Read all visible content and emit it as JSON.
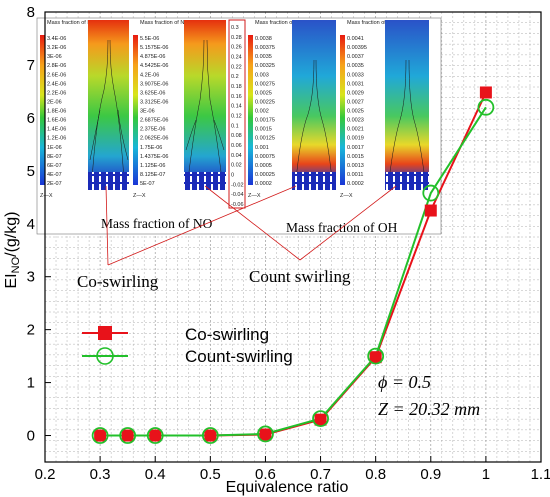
{
  "chart_data": {
    "type": "line",
    "title": "",
    "xlabel": "Equivalence ratio",
    "ylabel_main": "EI",
    "ylabel_sub": "NO",
    "ylabel_unit": "/(g/kg)",
    "xlim": [
      0.2,
      1.1
    ],
    "ylim": [
      -0.5,
      8
    ],
    "x_ticks": [
      "0.2",
      "0.3",
      "0.4",
      "0.5",
      "0.6",
      "0.7",
      "0.8",
      "0.9",
      "1",
      "1.1"
    ],
    "y_ticks": [
      "0",
      "1",
      "2",
      "3",
      "4",
      "5",
      "6",
      "7",
      "8"
    ],
    "grid": true,
    "legend_position": "bottom-left",
    "series": [
      {
        "name": "Co-swirling",
        "color": "#e8121a",
        "marker": "square",
        "x": [
          0.3,
          0.35,
          0.4,
          0.5,
          0.6,
          0.7,
          0.8,
          0.9,
          1.0
        ],
        "y": [
          0.0,
          0.0,
          0.0,
          0.0,
          0.02,
          0.3,
          1.48,
          4.25,
          6.48
        ]
      },
      {
        "name": "Count-swirling",
        "color": "#22c02a",
        "marker": "circle",
        "x": [
          0.3,
          0.35,
          0.4,
          0.5,
          0.6,
          0.7,
          0.8,
          0.9,
          1.0
        ],
        "y": [
          0.0,
          0.0,
          0.0,
          0.0,
          0.03,
          0.32,
          1.5,
          4.58,
          6.2
        ]
      }
    ],
    "annotations": {
      "phi_label": "ϕ = 0.5",
      "z_label": "Z = 20.32 mm",
      "co_swirling_label": "Co-swirling",
      "count_swirling_label": "Count swirling",
      "caption_no": "Mass fraction of NO",
      "caption_oh": "Mass fraction of OH"
    },
    "inset": {
      "no_legend_title": "Mass fraction of NO",
      "oh_legend_title": "Mass fraction of OH",
      "no_scale_1": [
        "3.4E-06",
        "3.2E-06",
        "3E-06",
        "2.8E-06",
        "2.6E-06",
        "2.4E-06",
        "2.2E-06",
        "2E-06",
        "1.8E-06",
        "1.6E-06",
        "1.4E-06",
        "1.2E-06",
        "1E-06",
        "8E-07",
        "6E-07",
        "4E-07",
        "2E-07"
      ],
      "no_scale_2": [
        "5.5E-06",
        "5.1575E-06",
        "4.875E-06",
        "4.5425E-06",
        "4.2E-06",
        "3.9075E-06",
        "3.625E-06",
        "3.3125E-06",
        "3E-06",
        "2.6875E-06",
        "2.375E-06",
        "2.0625E-06",
        "1.75E-06",
        "1.4375E-06",
        "1.125E-06",
        "8.125E-07",
        "5E-07"
      ],
      "oh_scale_1": [
        "0.0038",
        "0.00375",
        "0.0035",
        "0.00325",
        "0.003",
        "0.00275",
        "0.0025",
        "0.00225",
        "0.002",
        "0.00175",
        "0.0015",
        "0.00125",
        "0.001",
        "0.00075",
        "0.0005",
        "0.00025",
        "0.0002"
      ],
      "oh_scale_2": [
        "0.0041",
        "0.00395",
        "0.0037",
        "0.0035",
        "0.0033",
        "0.0031",
        "0.0029",
        "0.0027",
        "0.0025",
        "0.0023",
        "0.0021",
        "0.0019",
        "0.0017",
        "0.0015",
        "0.0013",
        "0.0011",
        "0.0002"
      ],
      "mid_scale": [
        "0.3",
        "0.28",
        "0.26",
        "0.24",
        "0.22",
        "0.2",
        "0.18",
        "0.16",
        "0.14",
        "0.12",
        "0.1",
        "0.08",
        "0.06",
        "0.04",
        "0.02",
        "0",
        "-0.02",
        "-0.04",
        "-0.06"
      ],
      "axis_label": "Z—X"
    }
  }
}
